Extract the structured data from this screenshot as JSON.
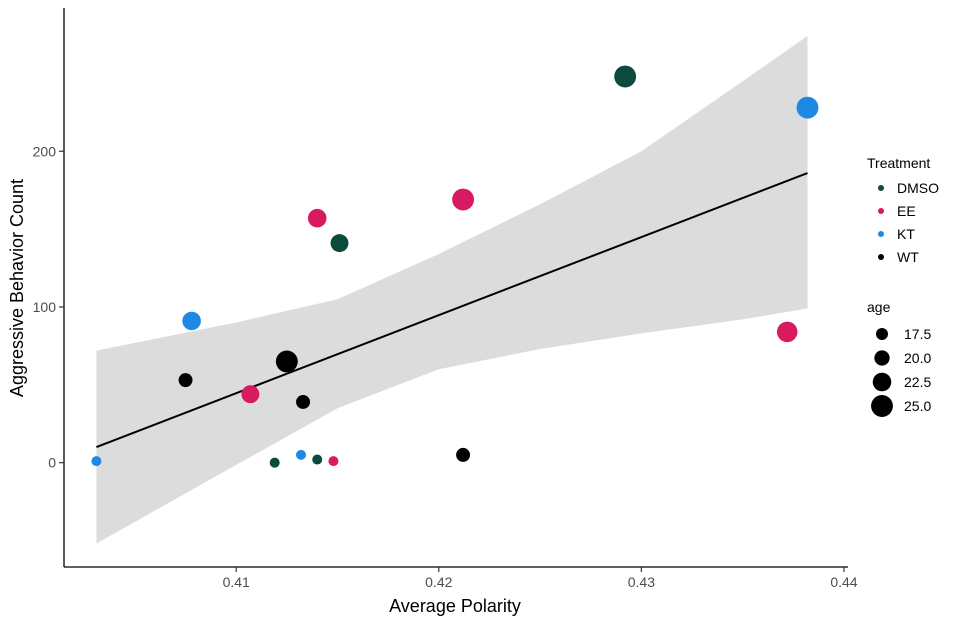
{
  "chart_data": {
    "type": "scatter",
    "title": "",
    "xlabel": "Average Polarity",
    "ylabel": "Aggressive Behavior Count",
    "xlim": [
      0.4015,
      0.4402
    ],
    "ylim": [
      -67,
      292
    ],
    "x_ticks": [
      0.41,
      0.42,
      0.43,
      0.44
    ],
    "x_tick_labels": [
      "0.41",
      "0.42",
      "0.43",
      "0.44"
    ],
    "y_ticks": [
      0,
      100,
      200
    ],
    "y_tick_labels": [
      "0",
      "100",
      "200"
    ],
    "grid": false,
    "legend_position": "right",
    "colors": {
      "DMSO": "#0b4a3c",
      "EE": "#d81b60",
      "KT": "#1e88e5",
      "WT": "#000000",
      "ribbon": "#dcdcdc",
      "line": "#000000"
    },
    "color_legend": {
      "title": "Treatment",
      "entries": [
        "DMSO",
        "EE",
        "KT",
        "WT"
      ]
    },
    "size_legend": {
      "title": "age",
      "entries": [
        {
          "label": "17.5",
          "value": 17.5
        },
        {
          "label": "20.0",
          "value": 20.0
        },
        {
          "label": "22.5",
          "value": 22.5
        },
        {
          "label": "25.0",
          "value": 25.0
        }
      ]
    },
    "series": [
      {
        "name": "DMSO",
        "points": [
          {
            "x": 0.4292,
            "y": 248,
            "age": 25
          },
          {
            "x": 0.4151,
            "y": 141,
            "age": 22
          },
          {
            "x": 0.4119,
            "y": 0,
            "age": 16
          },
          {
            "x": 0.414,
            "y": 2,
            "age": 16
          }
        ]
      },
      {
        "name": "EE",
        "points": [
          {
            "x": 0.4212,
            "y": 169,
            "age": 25
          },
          {
            "x": 0.414,
            "y": 157,
            "age": 22.5
          },
          {
            "x": 0.4107,
            "y": 44,
            "age": 22
          },
          {
            "x": 0.4372,
            "y": 84,
            "age": 24
          },
          {
            "x": 0.4148,
            "y": 1,
            "age": 16
          }
        ]
      },
      {
        "name": "KT",
        "points": [
          {
            "x": 0.4382,
            "y": 228,
            "age": 25
          },
          {
            "x": 0.4078,
            "y": 91,
            "age": 22.5
          },
          {
            "x": 0.4031,
            "y": 1,
            "age": 16
          },
          {
            "x": 0.4132,
            "y": 5,
            "age": 16
          }
        ]
      },
      {
        "name": "WT",
        "points": [
          {
            "x": 0.4125,
            "y": 65,
            "age": 25
          },
          {
            "x": 0.4075,
            "y": 53,
            "age": 19
          },
          {
            "x": 0.4133,
            "y": 39,
            "age": 19
          },
          {
            "x": 0.4212,
            "y": 5,
            "age": 19
          }
        ]
      }
    ],
    "regression": {
      "line": [
        {
          "x": 0.4031,
          "y": 10
        },
        {
          "x": 0.4382,
          "y": 186
        }
      ],
      "ribbon_upper": [
        {
          "x": 0.4031,
          "y": 72
        },
        {
          "x": 0.41,
          "y": 90
        },
        {
          "x": 0.415,
          "y": 105
        },
        {
          "x": 0.42,
          "y": 134
        },
        {
          "x": 0.425,
          "y": 166
        },
        {
          "x": 0.43,
          "y": 200
        },
        {
          "x": 0.435,
          "y": 245
        },
        {
          "x": 0.4382,
          "y": 274
        }
      ],
      "ribbon_lower": [
        {
          "x": 0.4031,
          "y": -52
        },
        {
          "x": 0.408,
          "y": -16
        },
        {
          "x": 0.415,
          "y": 35
        },
        {
          "x": 0.42,
          "y": 60
        },
        {
          "x": 0.425,
          "y": 73
        },
        {
          "x": 0.43,
          "y": 83
        },
        {
          "x": 0.435,
          "y": 92
        },
        {
          "x": 0.4382,
          "y": 99
        }
      ]
    }
  }
}
